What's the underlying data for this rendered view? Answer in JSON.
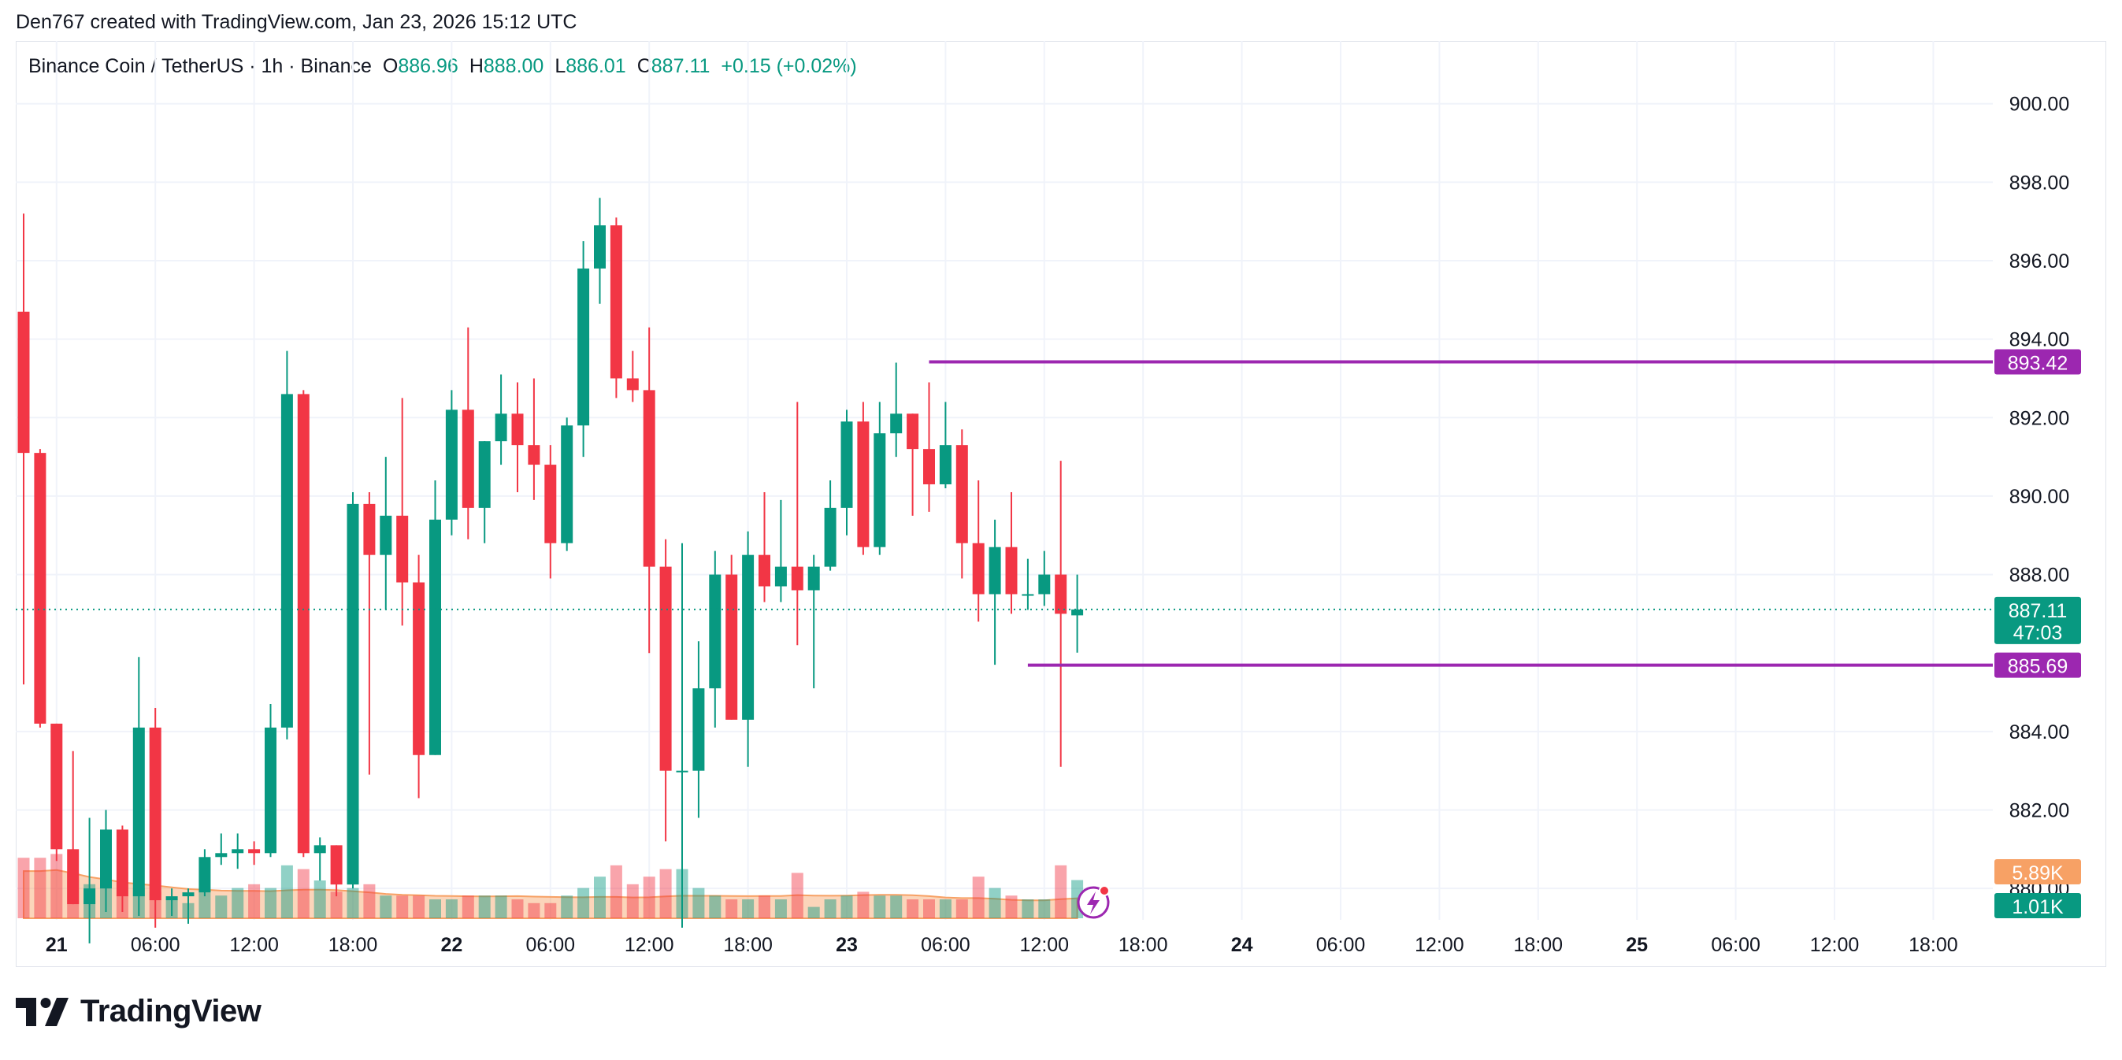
{
  "caption": "Den767 created with TradingView.com, Jan 23, 2026 15:12 UTC",
  "legend": {
    "symbol": "Binance Coin / TetherUS · 1h · Binance",
    "o_label": "O",
    "o_value": "886.96",
    "h_label": "H",
    "h_value": "888.00",
    "l_label": "L",
    "l_value": "886.01",
    "c_label": "C",
    "c_value": "887.11",
    "change": "+0.15 (+0.02%)"
  },
  "footer": {
    "brand": "TradingView",
    "logo_icon": "tradingview-logo-icon"
  },
  "chart_data": {
    "type": "candlestick",
    "y_range": [
      879.2,
      901.6
    ],
    "y_ticks": [
      "900.00",
      "898.00",
      "896.00",
      "894.00",
      "892.00",
      "890.00",
      "888.00",
      "884.00",
      "882.00",
      "880.00"
    ],
    "x_ticks": [
      {
        "label": "21",
        "bold": true,
        "bar": 2
      },
      {
        "label": "06:00",
        "bold": false,
        "bar": 8
      },
      {
        "label": "12:00",
        "bold": false,
        "bar": 14
      },
      {
        "label": "18:00",
        "bold": false,
        "bar": 20
      },
      {
        "label": "22",
        "bold": true,
        "bar": 26
      },
      {
        "label": "06:00",
        "bold": false,
        "bar": 32
      },
      {
        "label": "12:00",
        "bold": false,
        "bar": 38
      },
      {
        "label": "18:00",
        "bold": false,
        "bar": 44
      },
      {
        "label": "23",
        "bold": true,
        "bar": 50
      },
      {
        "label": "06:00",
        "bold": false,
        "bar": 56
      },
      {
        "label": "12:00",
        "bold": false,
        "bar": 62
      },
      {
        "label": "18:00",
        "bold": false,
        "bar": 68
      },
      {
        "label": "24",
        "bold": true,
        "bar": 74
      },
      {
        "label": "06:00",
        "bold": false,
        "bar": 80
      },
      {
        "label": "12:00",
        "bold": false,
        "bar": 86
      },
      {
        "label": "18:00",
        "bold": false,
        "bar": 92
      },
      {
        "label": "25",
        "bold": true,
        "bar": 98
      },
      {
        "label": "06:00",
        "bold": false,
        "bar": 104
      },
      {
        "label": "12:00",
        "bold": false,
        "bar": 110
      },
      {
        "label": "18:00",
        "bold": false,
        "bar": 116
      }
    ],
    "candles": [
      {
        "o": 894.7,
        "h": 897.2,
        "l": 885.2,
        "c": 891.1,
        "v": 1.6
      },
      {
        "o": 891.1,
        "h": 891.2,
        "l": 884.1,
        "c": 884.2,
        "v": 1.6
      },
      {
        "o": 884.2,
        "h": 884.2,
        "l": 880.7,
        "c": 881.0,
        "v": 1.7
      },
      {
        "o": 881.0,
        "h": 883.5,
        "l": 879.6,
        "c": 879.6,
        "v": 1.2
      },
      {
        "o": 879.6,
        "h": 881.8,
        "l": 878.6,
        "c": 880.0,
        "v": 0.9
      },
      {
        "o": 880.0,
        "h": 882.0,
        "l": 879.4,
        "c": 881.5,
        "v": 0.9
      },
      {
        "o": 881.5,
        "h": 881.6,
        "l": 879.4,
        "c": 879.8,
        "v": 0.6
      },
      {
        "o": 879.8,
        "h": 885.9,
        "l": 879.3,
        "c": 884.1,
        "v": 0.8
      },
      {
        "o": 884.1,
        "h": 884.6,
        "l": 879.0,
        "c": 879.7,
        "v": 0.7
      },
      {
        "o": 879.7,
        "h": 880.0,
        "l": 879.3,
        "c": 879.8,
        "v": 0.5
      },
      {
        "o": 879.8,
        "h": 880.0,
        "l": 879.1,
        "c": 879.9,
        "v": 0.4
      },
      {
        "o": 879.9,
        "h": 881.0,
        "l": 879.8,
        "c": 880.8,
        "v": 0.7
      },
      {
        "o": 880.8,
        "h": 881.4,
        "l": 880.6,
        "c": 880.9,
        "v": 0.6
      },
      {
        "o": 880.9,
        "h": 881.4,
        "l": 880.5,
        "c": 881.0,
        "v": 0.8
      },
      {
        "o": 881.0,
        "h": 881.2,
        "l": 880.6,
        "c": 880.9,
        "v": 0.9
      },
      {
        "o": 880.9,
        "h": 884.7,
        "l": 880.8,
        "c": 884.1,
        "v": 0.8
      },
      {
        "o": 884.1,
        "h": 893.7,
        "l": 883.8,
        "c": 892.6,
        "v": 1.4
      },
      {
        "o": 892.6,
        "h": 892.7,
        "l": 880.8,
        "c": 880.9,
        "v": 1.3
      },
      {
        "o": 880.9,
        "h": 881.3,
        "l": 880.2,
        "c": 881.1,
        "v": 1.0
      },
      {
        "o": 881.1,
        "h": 881.1,
        "l": 879.8,
        "c": 880.1,
        "v": 0.7
      },
      {
        "o": 880.1,
        "h": 890.1,
        "l": 880.0,
        "c": 889.8,
        "v": 0.8
      },
      {
        "o": 889.8,
        "h": 890.1,
        "l": 882.9,
        "c": 888.5,
        "v": 0.9
      },
      {
        "o": 888.5,
        "h": 891.0,
        "l": 887.1,
        "c": 889.5,
        "v": 0.6
      },
      {
        "o": 889.5,
        "h": 892.5,
        "l": 886.7,
        "c": 887.8,
        "v": 0.6
      },
      {
        "o": 887.8,
        "h": 888.5,
        "l": 882.3,
        "c": 883.4,
        "v": 0.6
      },
      {
        "o": 883.4,
        "h": 890.4,
        "l": 883.4,
        "c": 889.4,
        "v": 0.5
      },
      {
        "o": 889.4,
        "h": 892.7,
        "l": 889.0,
        "c": 892.2,
        "v": 0.5
      },
      {
        "o": 892.2,
        "h": 894.3,
        "l": 888.9,
        "c": 889.7,
        "v": 0.6
      },
      {
        "o": 889.7,
        "h": 891.4,
        "l": 888.8,
        "c": 891.4,
        "v": 0.6
      },
      {
        "o": 891.4,
        "h": 893.1,
        "l": 890.8,
        "c": 892.1,
        "v": 0.6
      },
      {
        "o": 892.1,
        "h": 892.9,
        "l": 890.1,
        "c": 891.3,
        "v": 0.5
      },
      {
        "o": 891.3,
        "h": 893.0,
        "l": 889.9,
        "c": 890.8,
        "v": 0.4
      },
      {
        "o": 890.8,
        "h": 891.3,
        "l": 887.9,
        "c": 888.8,
        "v": 0.4
      },
      {
        "o": 888.8,
        "h": 892.0,
        "l": 888.6,
        "c": 891.8,
        "v": 0.6
      },
      {
        "o": 891.8,
        "h": 896.5,
        "l": 891.0,
        "c": 895.8,
        "v": 0.8
      },
      {
        "o": 895.8,
        "h": 897.6,
        "l": 894.9,
        "c": 896.9,
        "v": 1.1
      },
      {
        "o": 896.9,
        "h": 897.1,
        "l": 892.5,
        "c": 893.0,
        "v": 1.4
      },
      {
        "o": 893.0,
        "h": 893.7,
        "l": 892.4,
        "c": 892.7,
        "v": 0.9
      },
      {
        "o": 892.7,
        "h": 894.3,
        "l": 886.0,
        "c": 888.2,
        "v": 1.1
      },
      {
        "o": 888.2,
        "h": 888.9,
        "l": 881.2,
        "c": 883.0,
        "v": 1.3
      },
      {
        "o": 883.0,
        "h": 888.8,
        "l": 879.0,
        "c": 883.0,
        "v": 1.3
      },
      {
        "o": 883.0,
        "h": 886.3,
        "l": 881.8,
        "c": 885.1,
        "v": 0.8
      },
      {
        "o": 885.1,
        "h": 888.6,
        "l": 884.1,
        "c": 888.0,
        "v": 0.6
      },
      {
        "o": 888.0,
        "h": 888.5,
        "l": 884.3,
        "c": 884.3,
        "v": 0.5
      },
      {
        "o": 884.3,
        "h": 889.1,
        "l": 883.1,
        "c": 888.5,
        "v": 0.5
      },
      {
        "o": 888.5,
        "h": 890.1,
        "l": 887.3,
        "c": 887.7,
        "v": 0.6
      },
      {
        "o": 887.7,
        "h": 889.9,
        "l": 887.3,
        "c": 888.2,
        "v": 0.5
      },
      {
        "o": 888.2,
        "h": 892.4,
        "l": 886.2,
        "c": 887.6,
        "v": 1.2
      },
      {
        "o": 887.6,
        "h": 888.5,
        "l": 885.1,
        "c": 888.2,
        "v": 0.3
      },
      {
        "o": 888.2,
        "h": 890.4,
        "l": 888.1,
        "c": 889.7,
        "v": 0.5
      },
      {
        "o": 889.7,
        "h": 892.2,
        "l": 889.0,
        "c": 891.9,
        "v": 0.6
      },
      {
        "o": 891.9,
        "h": 892.4,
        "l": 888.5,
        "c": 888.7,
        "v": 0.7
      },
      {
        "o": 888.7,
        "h": 892.4,
        "l": 888.5,
        "c": 891.6,
        "v": 0.6
      },
      {
        "o": 891.6,
        "h": 893.4,
        "l": 891.0,
        "c": 892.1,
        "v": 0.6
      },
      {
        "o": 892.1,
        "h": 892.1,
        "l": 889.5,
        "c": 891.2,
        "v": 0.5
      },
      {
        "o": 891.2,
        "h": 892.9,
        "l": 889.6,
        "c": 890.3,
        "v": 0.5
      },
      {
        "o": 890.3,
        "h": 892.4,
        "l": 890.2,
        "c": 891.3,
        "v": 0.5
      },
      {
        "o": 891.3,
        "h": 891.7,
        "l": 887.9,
        "c": 888.8,
        "v": 0.5
      },
      {
        "o": 888.8,
        "h": 890.4,
        "l": 886.8,
        "c": 887.5,
        "v": 1.1
      },
      {
        "o": 887.5,
        "h": 889.4,
        "l": 885.7,
        "c": 888.7,
        "v": 0.8
      },
      {
        "o": 888.7,
        "h": 890.1,
        "l": 887.0,
        "c": 887.5,
        "v": 0.6
      },
      {
        "o": 887.5,
        "h": 888.4,
        "l": 887.1,
        "c": 887.5,
        "v": 0.5
      },
      {
        "o": 887.5,
        "h": 888.6,
        "l": 887.2,
        "c": 888.0,
        "v": 0.5
      },
      {
        "o": 888.0,
        "h": 890.9,
        "l": 883.1,
        "c": 887.0,
        "v": 1.4
      },
      {
        "o": 886.96,
        "h": 888.0,
        "l": 886.01,
        "c": 887.11,
        "v": 1.01
      }
    ],
    "volume": {
      "last": "1.01K",
      "ma_last": "5.89K",
      "ma_color": "#f7a165"
    },
    "levels": [
      {
        "price": "893.42",
        "value": 893.42,
        "from_bar": 55,
        "color": "#9c27b0"
      },
      {
        "price": "885.69",
        "value": 885.69,
        "from_bar": 61,
        "color": "#9c27b0"
      }
    ],
    "last_price": {
      "price": "887.11",
      "countdown": "47:03",
      "value": 887.11
    },
    "colors": {
      "up": "#089981",
      "down": "#f23645",
      "grid": "#f0f3fa"
    }
  }
}
